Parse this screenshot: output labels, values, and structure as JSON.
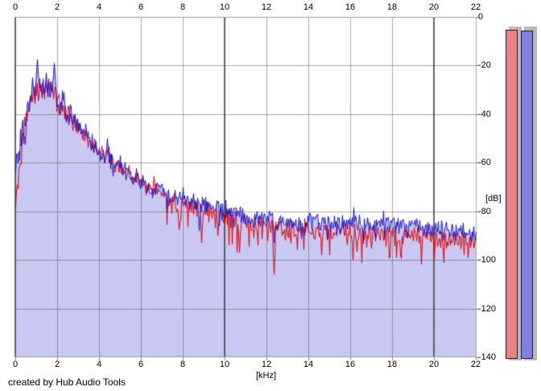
{
  "window": {
    "credit": "created by Hub Audio Tools"
  },
  "chart_data": {
    "type": "area",
    "title": "",
    "xlabel": "[kHz]",
    "ylabel": "[dB]",
    "xlim": [
      0,
      22
    ],
    "ylim": [
      -140,
      0
    ],
    "grid": true,
    "x_ticks": [
      0,
      2,
      4,
      6,
      8,
      10,
      12,
      14,
      16,
      18,
      20,
      22
    ],
    "y_ticks": [
      0,
      -20,
      -40,
      -60,
      -80,
      -100,
      -120,
      -140
    ],
    "major_x_gridlines_khz": [
      0,
      10,
      20
    ],
    "freq_step_khz": 0.5,
    "series": [
      {
        "name": "red-channel-spectrum",
        "color": "#e40000",
        "env_db": [
          -74,
          -41,
          -30,
          -29,
          -35,
          -40,
          -45,
          -51,
          -55,
          -59,
          -62,
          -66,
          -69,
          -71,
          -73,
          -75,
          -77,
          -78,
          -79,
          -80,
          -82,
          -83,
          -84,
          -85,
          -86,
          -86,
          -87,
          -87,
          -88,
          -88,
          -88,
          -88,
          -88,
          -89,
          -89,
          -89,
          -89,
          -90,
          -90,
          -90,
          -90,
          -91,
          -91,
          -91,
          -92
        ]
      },
      {
        "name": "blue-channel-spectrum",
        "color": "#1414cc",
        "fill_color": "#c8c8f2",
        "env_db": [
          -60,
          -41,
          -30,
          -29,
          -35,
          -40,
          -45,
          -51,
          -55,
          -59,
          -62,
          -65,
          -68,
          -70,
          -72,
          -74,
          -75,
          -76,
          -77,
          -78,
          -80,
          -81,
          -82,
          -83,
          -83,
          -84,
          -84,
          -85,
          -84,
          -85,
          -85,
          -85,
          -84,
          -85,
          -85,
          -85,
          -86,
          -86,
          -86,
          -87,
          -87,
          -87,
          -88,
          -88,
          -89
        ]
      }
    ],
    "notable_peaks_blue": [
      {
        "f": 1.05,
        "db": -17.5
      },
      {
        "f": 1.85,
        "db": -19
      },
      {
        "f": 1.45,
        "db": -23
      },
      {
        "f": 0.8,
        "db": -25
      },
      {
        "f": 2.3,
        "db": -31
      },
      {
        "f": 2.6,
        "db": -36
      },
      {
        "f": 3.35,
        "db": -44
      },
      {
        "f": 4.4,
        "db": -50
      },
      {
        "f": 5.0,
        "db": -57
      },
      {
        "f": 8.0,
        "db": -70
      }
    ],
    "notable_dips_blue": [
      {
        "f": 12.35,
        "db": -93
      },
      {
        "f": 8.75,
        "db": -88
      }
    ],
    "notable_dips_red": [
      {
        "f": 12.35,
        "db": -106
      },
      {
        "f": 16.1,
        "db": -100
      },
      {
        "f": 20.0,
        "db": -100
      },
      {
        "f": 14.6,
        "db": -98
      },
      {
        "f": 10.7,
        "db": -97
      },
      {
        "f": 18.4,
        "db": -98
      },
      {
        "f": 21.6,
        "db": -99
      },
      {
        "f": 8.9,
        "db": -93
      }
    ],
    "noise": {
      "blue": {
        "pp_low": 11,
        "pp_high": 7,
        "down_spike_prob": 0.08,
        "down_spike_db": 7,
        "spike_min_f": 0,
        "seed": 101
      },
      "red": {
        "pp_low": 11,
        "pp_high": 7,
        "down_spike_prob": 0.16,
        "down_spike_db": 11,
        "spike_min_f": 6,
        "seed": 202
      }
    }
  },
  "meters": {
    "left": {
      "label": "left-level-meter",
      "color": "#f08080",
      "level": 0.995
    },
    "right": {
      "label": "right-level-meter",
      "color": "#8080e0",
      "level": 0.993
    },
    "track_color": "#b8b8b8"
  },
  "colors": {
    "background": "#ffffff",
    "grid_light": "rgba(100,100,100,0.55)",
    "grid_heavy": "rgba(75,75,75,0.85)",
    "axis_border": "#9a9a9a",
    "tick_stub": "#808080",
    "text": "#000000"
  }
}
